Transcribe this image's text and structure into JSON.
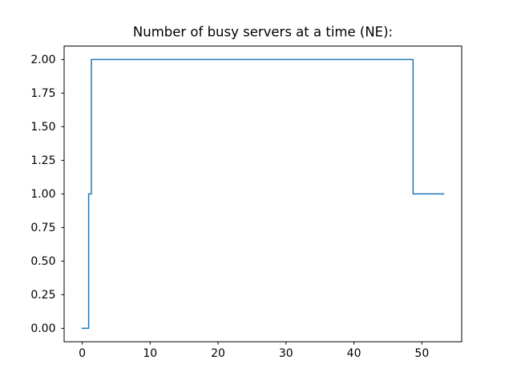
{
  "chart_data": {
    "type": "line",
    "style": "step",
    "title": "Number of busy servers at a time (NE):",
    "xlabel": "",
    "ylabel": "",
    "xlim": [
      -2.66,
      55.86
    ],
    "ylim": [
      -0.1,
      2.1
    ],
    "grid": false,
    "legend": false,
    "line_color": "#1f77b4",
    "axis_color": "#000000",
    "background_color": "#ffffff",
    "x_ticks": [
      {
        "value": 0,
        "label": "0"
      },
      {
        "value": 10,
        "label": "10"
      },
      {
        "value": 20,
        "label": "20"
      },
      {
        "value": 30,
        "label": "30"
      },
      {
        "value": 40,
        "label": "40"
      },
      {
        "value": 50,
        "label": "50"
      }
    ],
    "y_ticks": [
      {
        "value": 0.0,
        "label": "0.00"
      },
      {
        "value": 0.25,
        "label": "0.25"
      },
      {
        "value": 0.5,
        "label": "0.50"
      },
      {
        "value": 0.75,
        "label": "0.75"
      },
      {
        "value": 1.0,
        "label": "1.00"
      },
      {
        "value": 1.25,
        "label": "1.25"
      },
      {
        "value": 1.5,
        "label": "1.50"
      },
      {
        "value": 1.75,
        "label": "1.75"
      },
      {
        "value": 2.0,
        "label": "2.00"
      }
    ],
    "points": [
      [
        0,
        0
      ],
      [
        0.95,
        0
      ],
      [
        0.95,
        1
      ],
      [
        1.35,
        1
      ],
      [
        1.35,
        2
      ],
      [
        48.7,
        2
      ],
      [
        48.7,
        1
      ],
      [
        53.2,
        1
      ]
    ]
  }
}
